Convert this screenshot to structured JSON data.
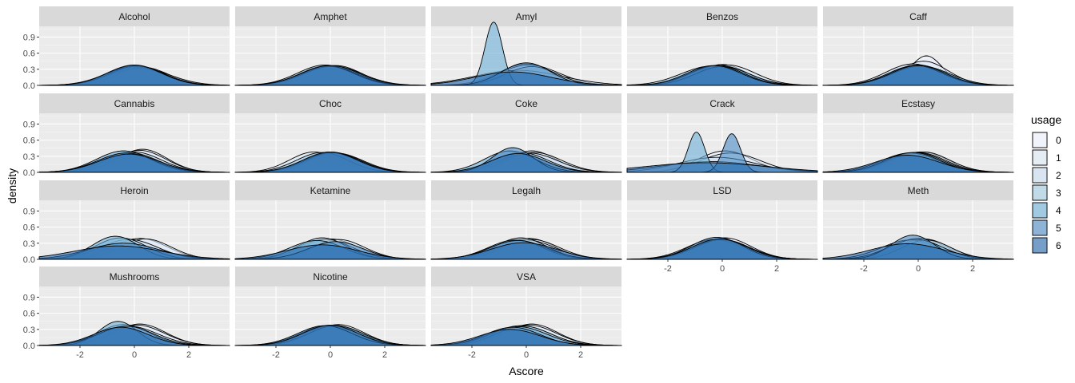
{
  "chart_data": {
    "type": "area",
    "subtype": "faceted density plot",
    "xlabel": "Ascore",
    "ylabel": "density",
    "x_range": [
      -3.5,
      3.5
    ],
    "y_range": [
      0,
      1.1
    ],
    "x_ticks": [
      "-2",
      "0",
      "2"
    ],
    "y_ticks": [
      "0.0",
      "0.3",
      "0.6",
      "0.9"
    ],
    "x_tick_values": [
      -2,
      0,
      2
    ],
    "y_tick_values": [
      0,
      0.3,
      0.6,
      0.9
    ],
    "grid": true,
    "panel_background": "#ebebeb",
    "strip_background": "#d9d9d9",
    "legend": {
      "title": "usage",
      "placement": "right",
      "levels": [
        "0",
        "1",
        "2",
        "3",
        "4",
        "5",
        "6"
      ],
      "colors": [
        "#eff3ff",
        "#dbe7f5",
        "#c6dbef",
        "#9ecae1",
        "#6baed6",
        "#4a8bc4",
        "#2166ac"
      ]
    },
    "fill_alpha": 0.6,
    "facets": [
      {
        "name": "Alcohol",
        "curves": [
          [
            0,
            0.4,
            0.36
          ],
          [
            0.3,
            0.95,
            0.34
          ],
          [
            0.2,
            1.1,
            0.32
          ],
          [
            0,
            1.05,
            0.35
          ],
          [
            0.1,
            1.0,
            0.36
          ],
          [
            0,
            1.0,
            0.37
          ],
          [
            0,
            1.0,
            0.38
          ]
        ]
      },
      {
        "name": "Amphet",
        "curves": [
          [
            0.2,
            0.95,
            0.37
          ],
          [
            -0.1,
            1.0,
            0.37
          ],
          [
            0.1,
            1.05,
            0.36
          ],
          [
            -0.2,
            1.0,
            0.38
          ],
          [
            0,
            1.0,
            0.35
          ],
          [
            -0.1,
            1.0,
            0.36
          ],
          [
            0,
            1.05,
            0.37
          ]
        ]
      },
      {
        "name": "Amyl",
        "curves": [
          [
            0,
            1.0,
            0.4
          ],
          [
            0.1,
            1.1,
            0.38
          ],
          [
            -0.3,
            1.6,
            0.28
          ],
          [
            0.2,
            0.95,
            0.35
          ],
          [
            -1.2,
            0.32,
            1.18
          ],
          [
            0,
            0.9,
            0.42
          ],
          [
            -0.5,
            1.4,
            0.25
          ]
        ]
      },
      {
        "name": "Benzos",
        "curves": [
          [
            0,
            0.9,
            0.39
          ],
          [
            0.2,
            1.0,
            0.38
          ],
          [
            -0.1,
            1.05,
            0.37
          ],
          [
            -0.4,
            1.1,
            0.36
          ],
          [
            0,
            1.0,
            0.35
          ],
          [
            -0.2,
            1.0,
            0.37
          ],
          [
            -0.3,
            1.0,
            0.37
          ]
        ]
      },
      {
        "name": "Caff",
        "curves": [
          [
            0.3,
            0.6,
            0.55
          ],
          [
            0.2,
            0.9,
            0.45
          ],
          [
            -0.2,
            1.0,
            0.4
          ],
          [
            0,
            1.0,
            0.38
          ],
          [
            0.1,
            1.05,
            0.36
          ],
          [
            -0.1,
            1.0,
            0.37
          ],
          [
            0,
            1.0,
            0.37
          ]
        ]
      },
      {
        "name": "Cannabis",
        "curves": [
          [
            0.3,
            0.9,
            0.43
          ],
          [
            0.2,
            0.95,
            0.41
          ],
          [
            0,
            1.0,
            0.38
          ],
          [
            -0.2,
            1.05,
            0.37
          ],
          [
            -0.4,
            1.0,
            0.4
          ],
          [
            -0.3,
            1.05,
            0.36
          ],
          [
            -0.2,
            1.1,
            0.34
          ]
        ]
      },
      {
        "name": "Choc",
        "curves": [
          [
            0,
            1.0,
            0.38
          ],
          [
            -0.6,
            0.9,
            0.38
          ],
          [
            0.2,
            1.0,
            0.36
          ],
          [
            -0.3,
            0.95,
            0.37
          ],
          [
            0.1,
            1.0,
            0.37
          ],
          [
            0,
            1.0,
            0.37
          ],
          [
            0,
            1.0,
            0.38
          ]
        ]
      },
      {
        "name": "Coke",
        "curves": [
          [
            0.2,
            0.9,
            0.4
          ],
          [
            0.3,
            1.0,
            0.37
          ],
          [
            0.1,
            1.05,
            0.36
          ],
          [
            -0.2,
            1.0,
            0.37
          ],
          [
            -0.6,
            0.95,
            0.4
          ],
          [
            -0.5,
            0.75,
            0.46
          ],
          [
            -0.3,
            1.0,
            0.35
          ]
        ]
      },
      {
        "name": "Crack",
        "curves": [
          [
            0.1,
            1.0,
            0.4
          ],
          [
            0.3,
            1.1,
            0.36
          ],
          [
            -0.2,
            1.4,
            0.28
          ],
          [
            -0.4,
            1.8,
            0.2
          ],
          [
            -0.95,
            0.3,
            0.75
          ],
          [
            0.35,
            0.32,
            0.72
          ],
          [
            -0.6,
            2.2,
            0.18
          ]
        ]
      },
      {
        "name": "Ecstasy",
        "curves": [
          [
            0.1,
            1.0,
            0.38
          ],
          [
            0.2,
            0.95,
            0.38
          ],
          [
            0,
            1.0,
            0.37
          ],
          [
            -0.1,
            1.0,
            0.37
          ],
          [
            -0.3,
            1.05,
            0.36
          ],
          [
            -0.2,
            1.0,
            0.37
          ],
          [
            -0.4,
            1.15,
            0.32
          ]
        ]
      },
      {
        "name": "Heroin",
        "curves": [
          [
            0.2,
            1.0,
            0.39
          ],
          [
            0.4,
            0.95,
            0.38
          ],
          [
            -0.2,
            1.05,
            0.37
          ],
          [
            -0.5,
            0.95,
            0.4
          ],
          [
            -0.7,
            0.85,
            0.43
          ],
          [
            -0.4,
            1.3,
            0.3
          ],
          [
            -0.6,
            1.6,
            0.25
          ]
        ]
      },
      {
        "name": "Ketamine",
        "curves": [
          [
            0,
            1.0,
            0.38
          ],
          [
            0.3,
            0.95,
            0.37
          ],
          [
            -0.2,
            1.0,
            0.37
          ],
          [
            -0.3,
            0.9,
            0.4
          ],
          [
            -0.5,
            1.0,
            0.35
          ],
          [
            0.2,
            1.0,
            0.33
          ],
          [
            -0.3,
            1.3,
            0.27
          ]
        ]
      },
      {
        "name": "Legalh",
        "curves": [
          [
            0.1,
            0.95,
            0.39
          ],
          [
            0.2,
            1.0,
            0.37
          ],
          [
            0,
            1.05,
            0.36
          ],
          [
            -0.2,
            0.95,
            0.4
          ],
          [
            -0.4,
            1.0,
            0.36
          ],
          [
            -0.3,
            1.05,
            0.35
          ],
          [
            -0.1,
            1.2,
            0.31
          ]
        ]
      },
      {
        "name": "LSD",
        "curves": [
          [
            0.1,
            0.95,
            0.4
          ],
          [
            -0.1,
            1.0,
            0.38
          ],
          [
            -0.3,
            1.0,
            0.37
          ],
          [
            -0.1,
            1.05,
            0.36
          ],
          [
            0,
            1.0,
            0.37
          ],
          [
            -0.2,
            0.95,
            0.41
          ],
          [
            -0.1,
            1.0,
            0.38
          ]
        ]
      },
      {
        "name": "Meth",
        "curves": [
          [
            0,
            1.0,
            0.39
          ],
          [
            0.2,
            0.95,
            0.38
          ],
          [
            -0.3,
            1.05,
            0.36
          ],
          [
            0.3,
            0.9,
            0.36
          ],
          [
            -0.1,
            1.0,
            0.37
          ],
          [
            -0.2,
            0.8,
            0.45
          ],
          [
            -0.4,
            1.35,
            0.29
          ]
        ]
      },
      {
        "name": "Mushrooms",
        "curves": [
          [
            0.2,
            0.95,
            0.4
          ],
          [
            0.1,
            1.0,
            0.38
          ],
          [
            -0.2,
            1.05,
            0.36
          ],
          [
            -0.4,
            0.95,
            0.39
          ],
          [
            -0.6,
            0.7,
            0.45
          ],
          [
            -0.3,
            1.0,
            0.36
          ],
          [
            -0.5,
            1.0,
            0.34
          ]
        ]
      },
      {
        "name": "Nicotine",
        "curves": [
          [
            0.3,
            0.95,
            0.39
          ],
          [
            0.1,
            1.0,
            0.38
          ],
          [
            -0.1,
            1.0,
            0.37
          ],
          [
            0,
            1.05,
            0.36
          ],
          [
            0.2,
            1.0,
            0.37
          ],
          [
            -0.2,
            1.0,
            0.37
          ],
          [
            0,
            1.0,
            0.38
          ]
        ]
      },
      {
        "name": "VSA",
        "curves": [
          [
            0.2,
            0.95,
            0.4
          ],
          [
            0.1,
            1.0,
            0.38
          ],
          [
            -0.2,
            1.05,
            0.37
          ],
          [
            -0.1,
            1.0,
            0.36
          ],
          [
            -0.3,
            1.05,
            0.35
          ],
          [
            -0.5,
            1.0,
            0.34
          ],
          [
            -0.6,
            1.1,
            0.3
          ]
        ]
      }
    ]
  }
}
